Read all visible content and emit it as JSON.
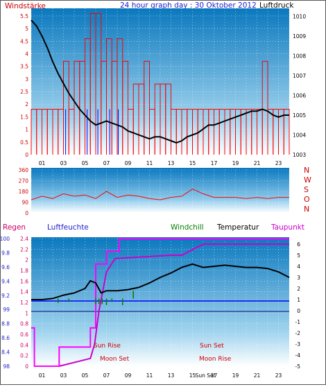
{
  "header": {
    "left_label": "Windstärke",
    "title": "24 hour graph day : 30 Oktober 2012",
    "right_label": "Luftdruck"
  },
  "colors": {
    "panel_top": "#0a7ec0",
    "panel_bottom": "#ffffff",
    "red": "#ff0000",
    "blue": "#0000ff",
    "black": "#000000",
    "green": "#008000",
    "magenta": "#ff00ff",
    "darkred": "#cc0000"
  },
  "chart_data": [
    {
      "type": "line",
      "name_left": "Windstärke",
      "name_right": "Luftdruck",
      "y_left_ticks": [
        "0",
        "0.5",
        "1",
        "1.5",
        "2",
        "2.5",
        "3",
        "3.5",
        "4",
        "4.5",
        "5",
        "5.5"
      ],
      "y_right_ticks": [
        "1003",
        "1004",
        "1005",
        "1006",
        "1007",
        "1008",
        "1009",
        "1010"
      ],
      "x_ticks": [
        "01",
        "03",
        "05",
        "07",
        "09",
        "11",
        "13",
        "15",
        "17",
        "19",
        "21",
        "23"
      ],
      "ylim_left": [
        0,
        5.8
      ],
      "ylim_right": [
        1003,
        1010.4
      ],
      "pressure_series": {
        "x": [
          0,
          0.5,
          1,
          1.5,
          2,
          2.5,
          3,
          3.5,
          4,
          4.5,
          5,
          5.5,
          6,
          6.5,
          7,
          7.5,
          8,
          8.5,
          9,
          9.5,
          10,
          10.5,
          11,
          11.5,
          12,
          12.5,
          13,
          13.5,
          14,
          14.5,
          15,
          15.5,
          16,
          16.5,
          17,
          17.5,
          18,
          18.5,
          19,
          19.5,
          20,
          20.5,
          21,
          21.5,
          22,
          22.5,
          23,
          23.5,
          24
        ],
        "values": [
          1009.8,
          1009.5,
          1009.0,
          1008.4,
          1007.7,
          1007.1,
          1006.6,
          1006.1,
          1005.7,
          1005.3,
          1005.0,
          1004.7,
          1004.5,
          1004.6,
          1004.7,
          1004.6,
          1004.5,
          1004.4,
          1004.2,
          1004.1,
          1004.0,
          1003.9,
          1003.8,
          1003.9,
          1003.9,
          1003.8,
          1003.7,
          1003.6,
          1003.7,
          1003.9,
          1004.0,
          1004.1,
          1004.3,
          1004.5,
          1004.5,
          1004.6,
          1004.7,
          1004.8,
          1004.9,
          1005.0,
          1005.1,
          1005.2,
          1005.2,
          1005.3,
          1005.2,
          1005.0,
          1004.9,
          1005.0,
          1005.0
        ]
      },
      "wind_gust_series": {
        "x": [
          0,
          0.5,
          1,
          1.5,
          2,
          2.5,
          3,
          3.5,
          4,
          4.5,
          5,
          5.5,
          6,
          6.5,
          7,
          7.5,
          8,
          8.5,
          9,
          9.5,
          10,
          10.5,
          11,
          11.5,
          12,
          12.5,
          13,
          13.5,
          14,
          14.5,
          15,
          15.5,
          16,
          16.5,
          17,
          17.5,
          18,
          18.5,
          19,
          19.5,
          20,
          20.5,
          21,
          21.5,
          22,
          22.5,
          23,
          23.5
        ],
        "values": [
          1.8,
          1.8,
          1.8,
          1.8,
          1.8,
          1.8,
          3.7,
          1.8,
          3.7,
          3.7,
          4.6,
          5.6,
          5.6,
          3.7,
          4.6,
          3.7,
          4.6,
          3.7,
          1.8,
          2.8,
          2.8,
          3.7,
          1.8,
          2.8,
          2.8,
          2.8,
          1.8,
          1.8,
          1.8,
          1.8,
          1.8,
          1.8,
          1.8,
          1.8,
          1.8,
          1.8,
          1.8,
          1.8,
          1.8,
          1.8,
          1.8,
          1.8,
          1.8,
          3.7,
          1.8,
          1.8,
          1.8,
          1.8
        ]
      }
    },
    {
      "type": "line",
      "name_right_ticks": [
        "N",
        "W",
        "S",
        "O",
        "N"
      ],
      "y_left_ticks": [
        "0",
        "90",
        "180",
        "270",
        "360"
      ],
      "ylim": [
        0,
        360
      ],
      "direction_series": {
        "x": [
          0,
          1,
          2,
          3,
          4,
          5,
          6,
          7,
          8,
          9,
          10,
          11,
          12,
          13,
          14,
          15,
          16,
          17,
          18,
          19,
          20,
          21,
          22,
          23,
          24
        ],
        "values": [
          110,
          140,
          120,
          160,
          140,
          150,
          120,
          180,
          130,
          150,
          140,
          120,
          110,
          130,
          140,
          200,
          160,
          130,
          130,
          130,
          120,
          130,
          120,
          130,
          130
        ]
      }
    },
    {
      "type": "line",
      "left_labels": [
        "Regen",
        "Luftfeuchte"
      ],
      "top_labels": [
        "Windchill",
        "Temperatur",
        "Taupunkt"
      ],
      "y_rain_ticks": [
        "0",
        "0.2",
        "0.4",
        "0.6",
        "0.8",
        "1",
        "1.2",
        "1.4",
        "1.6",
        "1.8",
        "2",
        "2.2",
        "2.4"
      ],
      "y_hum_ticks": [
        "98",
        "8.4",
        "8.6",
        "8.8",
        "99",
        "9.2",
        "9.4",
        "9.6",
        "9.8",
        "100"
      ],
      "y_temp_ticks": [
        "6",
        "5",
        "4",
        "3",
        "2",
        "1",
        "0",
        "-1",
        "-2",
        "-3",
        "-4",
        "-5"
      ],
      "ylim_temp": [
        -5,
        6.5
      ],
      "x_ticks": [
        "01",
        "03",
        "05",
        "07",
        "09",
        "11",
        "13",
        "15",
        "17",
        "19",
        "21",
        "23"
      ],
      "events": [
        "Sun Rise",
        "Moon Set",
        "Sun Set",
        "Moon Rise"
      ],
      "x_special_tick": "Sun Set",
      "temperature": {
        "x": [
          0,
          1,
          2,
          3,
          4,
          5,
          5.5,
          6,
          6.5,
          7,
          8,
          9,
          10,
          11,
          12,
          13,
          14,
          15,
          16,
          17,
          18,
          19,
          20,
          21,
          22,
          23,
          24
        ],
        "values": [
          1.0,
          1.0,
          1.1,
          1.4,
          1.6,
          2.0,
          2.7,
          2.5,
          1.6,
          1.8,
          1.8,
          1.9,
          2.1,
          2.5,
          3.0,
          3.4,
          3.9,
          4.2,
          3.9,
          4.0,
          4.1,
          4.0,
          3.9,
          3.9,
          3.8,
          3.5,
          3.0
        ]
      },
      "dewpoint_line": {
        "x": [
          2.6,
          5.5,
          5.9,
          6.3,
          7.0,
          7.8,
          13.0,
          14.0,
          16.0,
          20.0,
          24.0
        ],
        "values": [
          -5,
          -4.3,
          -3.0,
          0.0,
          3.5,
          4.7,
          5.0,
          5.0,
          6.0,
          6.0,
          6.0
        ]
      },
      "humidity_step": {
        "x": [
          0,
          0.3,
          0.3,
          2.6,
          2.6,
          5.5,
          5.5,
          6.0,
          6.0,
          7.0,
          7.0,
          8.2,
          8.2,
          16.6,
          16.6,
          24
        ],
        "values": [
          98.6,
          98.6,
          98.0,
          98.0,
          98.3,
          98.3,
          98.6,
          98.6,
          99.6,
          99.6,
          99.8,
          99.8,
          100.0,
          100.0,
          100.0,
          100.0
        ]
      },
      "rain_hline": 1.2,
      "humidity_hline": 99.0,
      "windchill_dips": {
        "x": [
          2.5,
          3.5,
          6.0,
          6.3,
          6.6,
          7.0,
          7.5,
          8.5,
          9.5
        ],
        "values": [
          0.7,
          0.8,
          0.6,
          0.6,
          0.6,
          0.5,
          0.8,
          0.5,
          1.8
        ]
      }
    }
  ]
}
